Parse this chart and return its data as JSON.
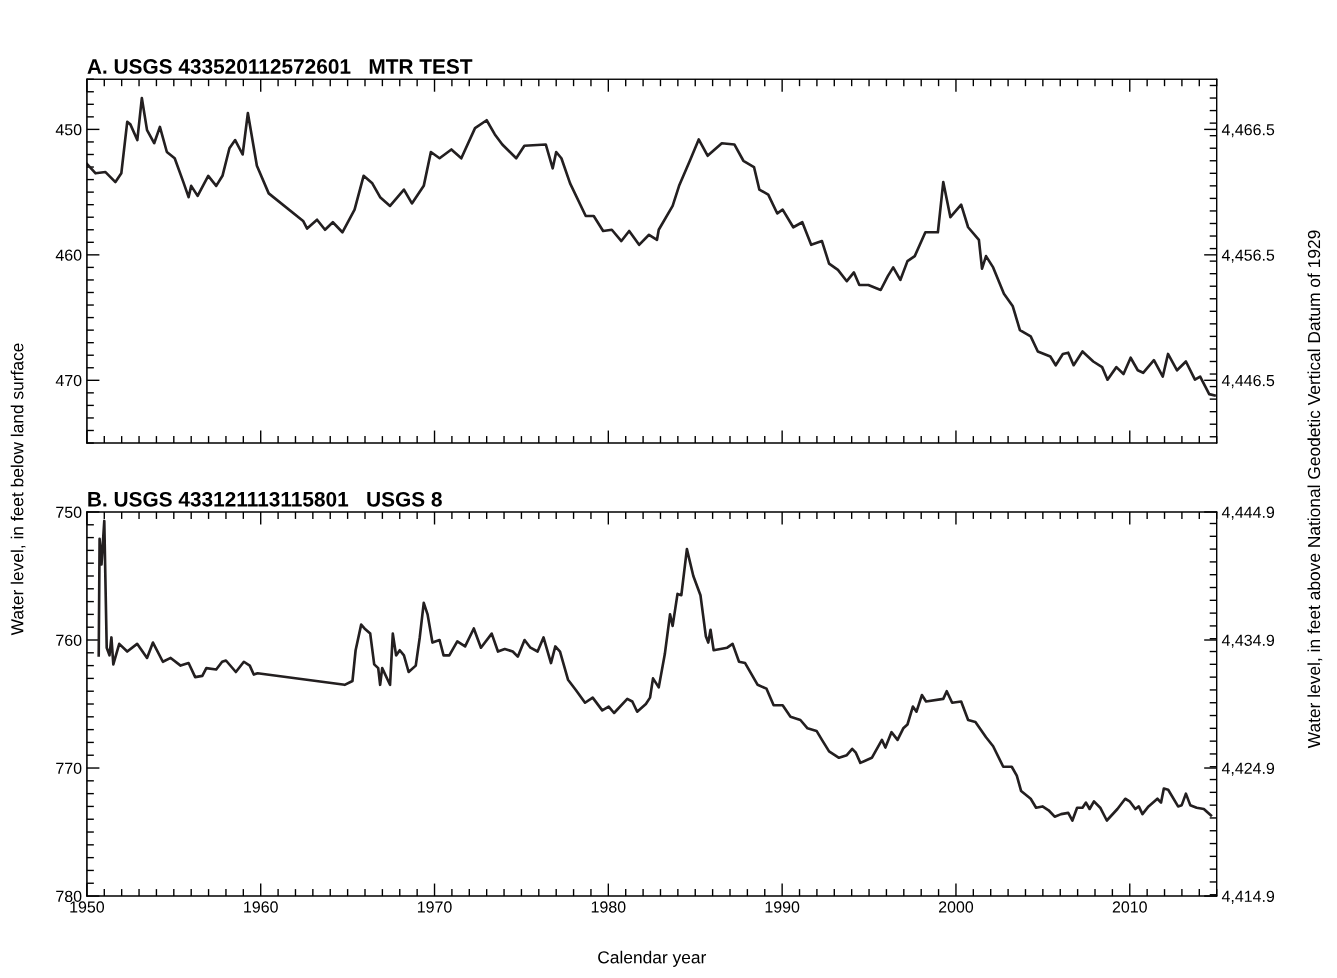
{
  "chart_data": [
    {
      "type": "line",
      "title": "A. USGS 433520112572601   MTR TEST",
      "ylabel": "Water level, in feet below land surface",
      "y2label": "Water level, in feet above National Geodetic Vertical Datum of 1929",
      "xlim": [
        1950,
        2015
      ],
      "xticks": [
        1950,
        1960,
        1970,
        1980,
        1990,
        2000,
        2010
      ],
      "ylim": [
        475,
        446
      ],
      "yticks": [
        450,
        460,
        470
      ],
      "y2lim": [
        4441.5,
        4470.5
      ],
      "y2ticks": [
        {
          "value": 4446.5,
          "label": "4,446.5"
        },
        {
          "value": 4456.5,
          "label": "4,456.5"
        },
        {
          "value": 4466.5,
          "label": "4,466.5"
        }
      ],
      "tick_labels": "y",
      "grid": false,
      "legend": false,
      "marker": "none",
      "line_style": "solid",
      "series": [
        {
          "color": "#231f20",
          "x": [
            1950.0,
            1950.5,
            1951.07,
            1951.64,
            1951.98,
            1952.32,
            1952.5,
            1952.9,
            1953.16,
            1953.46,
            1953.87,
            1954.2,
            1954.6,
            1955.05,
            1955.55,
            1955.85,
            1956.0,
            1956.37,
            1956.98,
            1957.44,
            1957.8,
            1958.2,
            1958.53,
            1958.96,
            1959.26,
            1959.78,
            1960.46,
            1962.44,
            1962.67,
            1963.24,
            1963.7,
            1964.15,
            1964.7,
            1965.4,
            1965.92,
            1966.42,
            1966.87,
            1967.44,
            1968.24,
            1968.7,
            1969.38,
            1969.79,
            1970.29,
            1970.97,
            1971.54,
            1972.33,
            1973.0,
            1973.47,
            1973.9,
            1974.7,
            1975.17,
            1976.4,
            1976.8,
            1977.0,
            1977.3,
            1977.8,
            1978.7,
            1979.16,
            1979.7,
            1980.2,
            1980.75,
            1981.2,
            1981.77,
            1982.34,
            1982.8,
            1982.9,
            1983.7,
            1984.07,
            1984.69,
            1985.2,
            1985.71,
            1986.53,
            1987.25,
            1987.77,
            1988.38,
            1988.69,
            1989.2,
            1989.72,
            1990.03,
            1990.64,
            1991.16,
            1991.67,
            1992.29,
            1992.7,
            1993.21,
            1993.72,
            1994.13,
            1994.44,
            1994.96,
            1995.67,
            1996.08,
            1996.39,
            1996.8,
            1997.21,
            1997.63,
            1998.24,
            1998.96,
            1999.27,
            1999.68,
            2000.3,
            2000.7,
            2001.32,
            2001.5,
            2001.73,
            2002.14,
            2002.76,
            2003.27,
            2003.68,
            2004.3,
            2004.71,
            2005.43,
            2005.74,
            2006.15,
            2006.46,
            2006.77,
            2007.28,
            2007.9,
            2008.41,
            2008.72,
            2009.23,
            2009.64,
            2010.05,
            2010.46,
            2010.77,
            2011.39,
            2011.9,
            2012.2,
            2012.72,
            2013.23,
            2013.75,
            2014.05,
            2014.57,
            2014.88
          ],
          "values": [
            452.75,
            453.5,
            453.4,
            454.2,
            453.5,
            449.4,
            449.6,
            450.85,
            447.5,
            450.06,
            451.1,
            449.8,
            451.8,
            452.3,
            454.2,
            455.4,
            454.5,
            455.3,
            453.7,
            454.5,
            453.7,
            451.5,
            450.85,
            452.0,
            448.7,
            452.9,
            455.1,
            457.3,
            457.9,
            457.2,
            458.0,
            457.4,
            458.2,
            456.4,
            453.7,
            454.3,
            455.4,
            456.1,
            454.8,
            455.9,
            454.5,
            451.8,
            452.3,
            451.6,
            452.3,
            449.9,
            449.27,
            450.4,
            451.2,
            452.3,
            451.3,
            451.2,
            453.1,
            451.8,
            452.3,
            454.3,
            456.9,
            456.9,
            458.1,
            458.0,
            458.9,
            458.1,
            459.2,
            458.4,
            458.8,
            458.0,
            456.1,
            454.5,
            452.5,
            450.8,
            452.1,
            451.1,
            451.2,
            452.5,
            453.0,
            454.8,
            455.2,
            456.7,
            456.4,
            457.8,
            457.4,
            459.2,
            458.9,
            460.7,
            461.2,
            462.1,
            461.4,
            462.4,
            462.4,
            462.8,
            461.7,
            461.0,
            462.0,
            460.5,
            460.1,
            458.2,
            458.2,
            454.2,
            457.0,
            456.0,
            457.8,
            458.8,
            461.1,
            460.1,
            461.0,
            463.1,
            464.1,
            466.0,
            466.5,
            467.7,
            468.1,
            468.8,
            467.9,
            467.8,
            468.8,
            467.7,
            468.5,
            468.95,
            469.95,
            468.95,
            469.5,
            468.2,
            469.2,
            469.4,
            468.4,
            469.7,
            467.9,
            469.2,
            468.5,
            469.95,
            469.7,
            471.1,
            471.2
          ]
        }
      ]
    },
    {
      "type": "line",
      "title": "B. USGS 433121113115801   USGS 8",
      "xlabel": "Calendar year",
      "xlim": [
        1950,
        2015
      ],
      "xticks": [
        1950,
        1960,
        1970,
        1980,
        1990,
        2000,
        2010
      ],
      "ylim": [
        780,
        750
      ],
      "yticks": [
        750,
        760,
        770,
        780
      ],
      "y2lim": [
        4414.9,
        4444.9
      ],
      "y2ticks": [
        {
          "value": 4414.9,
          "label": "4,414.9"
        },
        {
          "value": 4424.9,
          "label": "4,424.9"
        },
        {
          "value": 4434.9,
          "label": "4,434.9"
        },
        {
          "value": 4444.9,
          "label": "4,444.9"
        }
      ],
      "grid": false,
      "legend": false,
      "marker": "none",
      "line_style": "solid",
      "series": [
        {
          "color": "#231f20",
          "x": [
            1950.68,
            1950.73,
            1950.84,
            1951.0,
            1951.14,
            1951.3,
            1951.41,
            1951.52,
            1951.86,
            1952.32,
            1952.89,
            1953.46,
            1953.8,
            1954.37,
            1954.82,
            1955.39,
            1955.85,
            1956.23,
            1956.64,
            1956.87,
            1957.44,
            1957.78,
            1958.0,
            1958.57,
            1959.03,
            1959.37,
            1959.6,
            1959.82,
            1964.83,
            1965.28,
            1965.46,
            1965.78,
            1965.97,
            1966.3,
            1966.53,
            1966.76,
            1966.87,
            1966.99,
            1967.44,
            1967.6,
            1967.79,
            1968.0,
            1968.24,
            1968.51,
            1968.92,
            1969.15,
            1969.38,
            1969.6,
            1969.88,
            1970.29,
            1970.52,
            1970.85,
            1971.31,
            1971.76,
            1972.26,
            1972.67,
            1973.29,
            1973.65,
            1974.04,
            1974.5,
            1974.79,
            1975.18,
            1975.52,
            1975.93,
            1976.27,
            1976.7,
            1976.95,
            1977.22,
            1977.68,
            1978.13,
            1978.66,
            1979.1,
            1979.65,
            1980.02,
            1980.33,
            1981.09,
            1981.38,
            1981.66,
            1982.16,
            1982.4,
            1982.57,
            1982.9,
            1983.25,
            1983.55,
            1983.7,
            1983.98,
            1984.2,
            1984.52,
            1984.89,
            1985.3,
            1985.61,
            1985.75,
            1985.88,
            1986.06,
            1986.84,
            1987.15,
            1987.52,
            1987.87,
            1988.59,
            1989.1,
            1989.51,
            1990.03,
            1990.48,
            1991.05,
            1991.46,
            1991.98,
            1992.29,
            1992.7,
            1993.27,
            1993.72,
            1994.03,
            1994.24,
            1994.5,
            1995.16,
            1995.74,
            1995.94,
            1996.29,
            1996.64,
            1996.97,
            1997.21,
            1997.52,
            1997.73,
            1998.04,
            1998.28,
            1999.27,
            1999.47,
            1999.78,
            2000.3,
            2000.7,
            2001.12,
            2001.73,
            2002.14,
            2002.72,
            2003.21,
            2003.5,
            2003.75,
            2004.3,
            2004.61,
            2004.98,
            2005.33,
            2005.68,
            2006.05,
            2006.46,
            2006.7,
            2006.97,
            2007.28,
            2007.48,
            2007.69,
            2007.94,
            2008.3,
            2008.68,
            2009.29,
            2009.74,
            2009.99,
            2010.32,
            2010.52,
            2010.73,
            2011.08,
            2011.59,
            2011.8,
            2011.96,
            2012.21,
            2012.78,
            2012.99,
            2013.23,
            2013.48,
            2013.85,
            2014.26,
            2014.67
          ],
          "values": [
            761.2,
            752.1,
            754.1,
            750.7,
            760.6,
            761.2,
            759.8,
            761.9,
            760.3,
            760.9,
            760.3,
            761.4,
            760.2,
            761.7,
            761.4,
            762.0,
            761.8,
            762.9,
            762.8,
            762.2,
            762.3,
            761.7,
            761.6,
            762.5,
            761.7,
            762.0,
            762.7,
            762.6,
            763.5,
            763.2,
            760.8,
            758.8,
            759.1,
            759.5,
            761.9,
            762.2,
            763.5,
            762.2,
            763.5,
            759.5,
            761.2,
            760.8,
            761.2,
            762.5,
            762.0,
            759.8,
            757.1,
            758.0,
            760.2,
            760.0,
            761.2,
            761.2,
            760.1,
            760.5,
            759.1,
            760.6,
            759.5,
            760.9,
            760.7,
            760.9,
            761.3,
            760.0,
            760.6,
            760.9,
            759.8,
            761.8,
            760.5,
            760.9,
            763.1,
            763.9,
            764.9,
            764.5,
            765.5,
            765.2,
            765.7,
            764.6,
            764.8,
            765.6,
            765.0,
            764.5,
            763.0,
            763.7,
            761.1,
            758.0,
            758.9,
            756.4,
            756.5,
            752.9,
            755.0,
            756.5,
            759.7,
            760.2,
            759.2,
            760.8,
            760.6,
            760.3,
            761.7,
            761.8,
            763.5,
            763.8,
            765.1,
            765.1,
            766.0,
            766.25,
            766.9,
            767.1,
            767.8,
            768.7,
            769.2,
            769.0,
            768.5,
            768.8,
            769.6,
            769.2,
            767.8,
            768.4,
            767.2,
            767.8,
            766.9,
            766.6,
            765.2,
            765.6,
            764.3,
            764.8,
            764.6,
            764.0,
            764.9,
            764.8,
            766.25,
            766.4,
            767.6,
            768.3,
            769.9,
            769.9,
            770.6,
            771.8,
            772.4,
            773.1,
            773.0,
            773.3,
            773.8,
            773.6,
            773.5,
            774.1,
            773.1,
            773.1,
            772.7,
            773.2,
            772.6,
            773.1,
            774.1,
            773.2,
            772.4,
            772.6,
            773.2,
            773.0,
            773.6,
            773.0,
            772.4,
            772.7,
            771.6,
            771.7,
            773.0,
            772.9,
            772.0,
            772.9,
            773.1,
            773.2,
            773.7
          ]
        }
      ]
    }
  ]
}
